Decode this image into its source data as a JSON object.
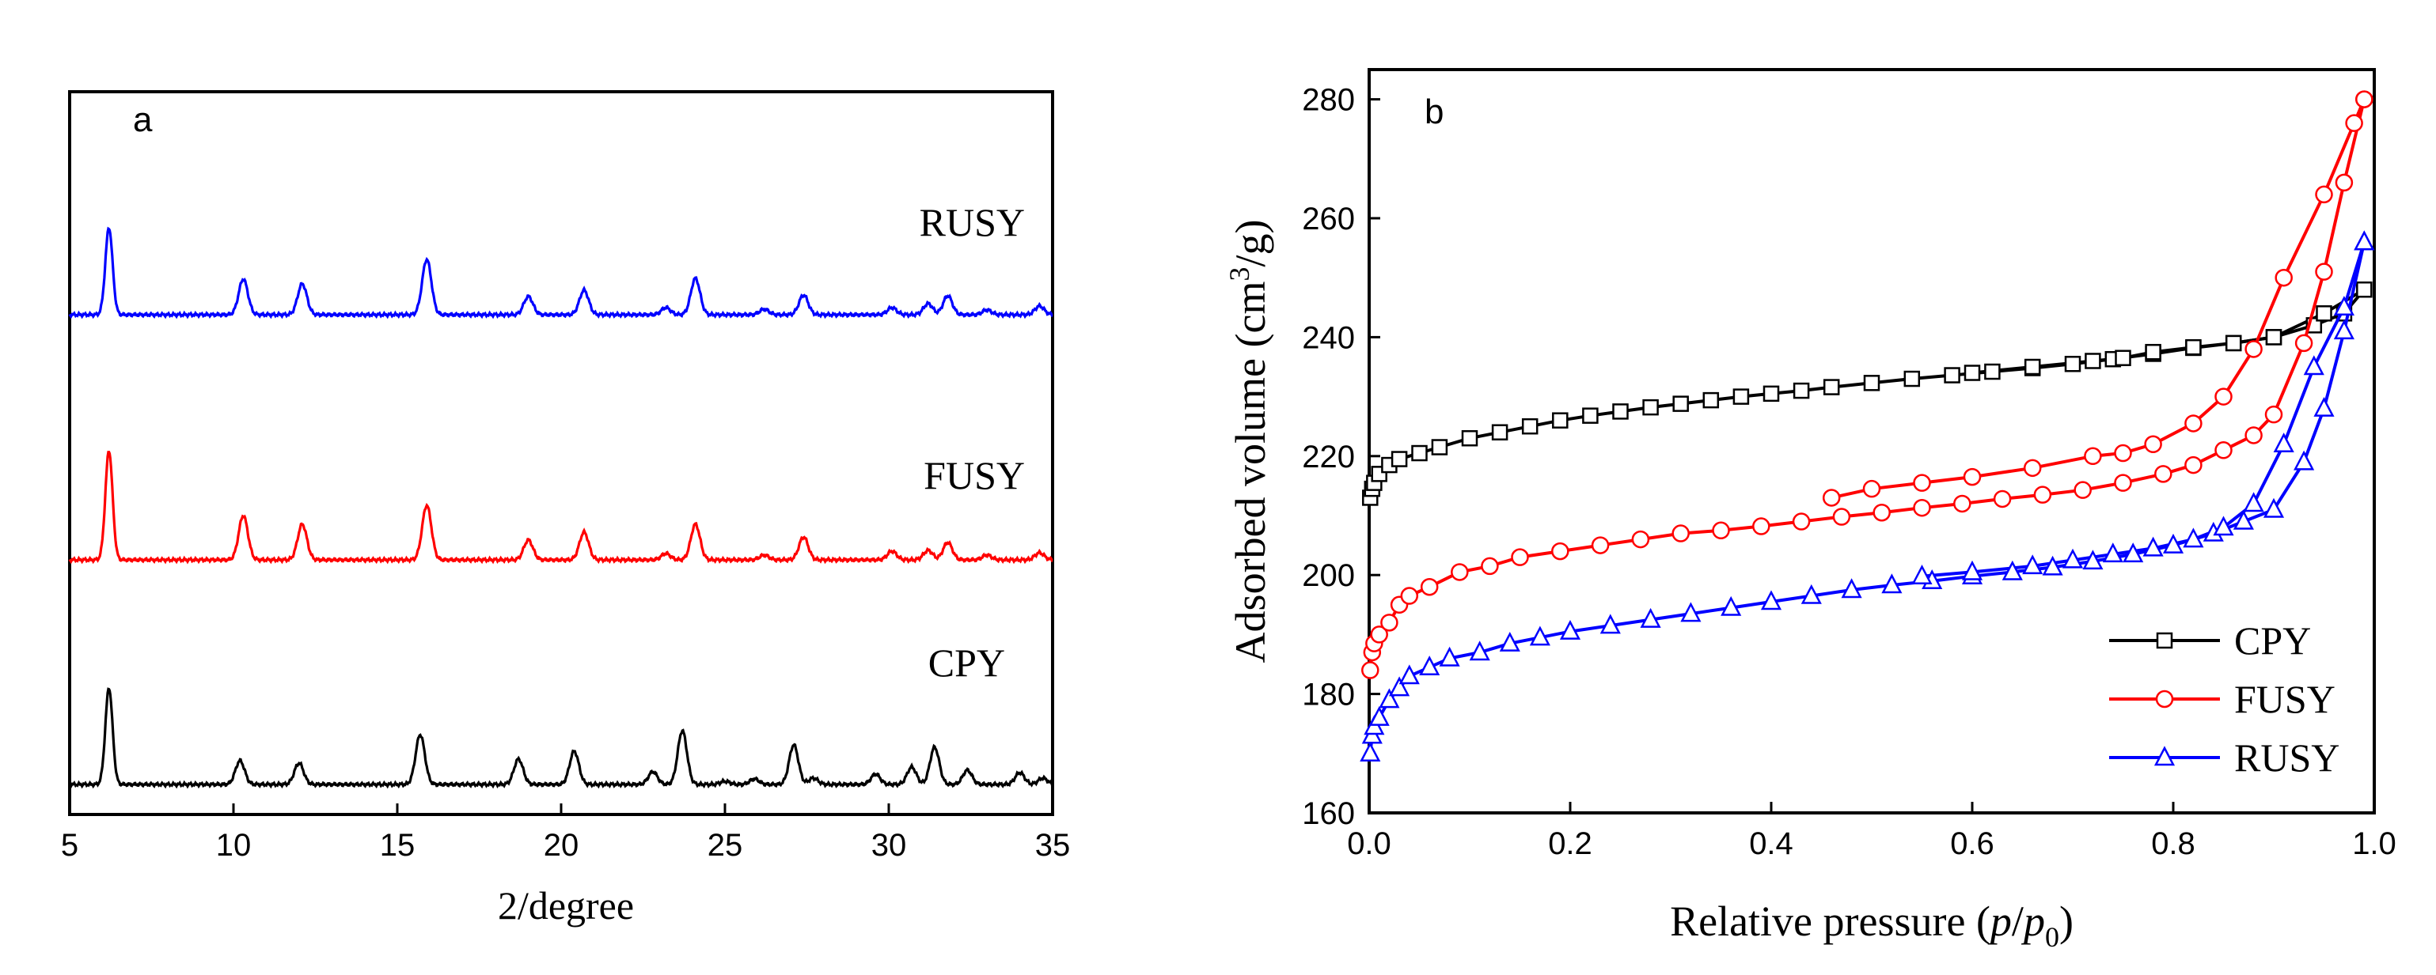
{
  "chart_data": [
    {
      "type": "line",
      "panel_label": "a",
      "xlabel": "2/degree",
      "ylabel": "",
      "xlim": [
        5,
        35
      ],
      "xticks": [
        "5",
        "10",
        "15",
        "20",
        "25",
        "30",
        "35"
      ],
      "y_ticks_shown": false,
      "series": [
        {
          "name": "RUSY",
          "color": "#0000ff",
          "peaks": [
            [
              6.2,
              110
            ],
            [
              10.3,
              45
            ],
            [
              12.1,
              39
            ],
            [
              15.9,
              70
            ],
            [
              19.0,
              23
            ],
            [
              20.7,
              31
            ],
            [
              23.2,
              9
            ],
            [
              24.1,
              46
            ],
            [
              26.2,
              7
            ],
            [
              27.4,
              25
            ],
            [
              30.1,
              9
            ],
            [
              31.2,
              14
            ],
            [
              31.8,
              24
            ],
            [
              33.0,
              6
            ],
            [
              34.6,
              11
            ]
          ]
        },
        {
          "name": "FUSY",
          "color": "#ff0000",
          "peaks": [
            [
              6.2,
              138
            ],
            [
              10.3,
              56
            ],
            [
              12.1,
              45
            ],
            [
              15.9,
              69
            ],
            [
              19.0,
              25
            ],
            [
              20.7,
              35
            ],
            [
              23.2,
              8
            ],
            [
              24.1,
              45
            ],
            [
              26.2,
              6
            ],
            [
              27.4,
              29
            ],
            [
              30.1,
              11
            ],
            [
              31.2,
              12
            ],
            [
              31.8,
              22
            ],
            [
              33.0,
              6
            ],
            [
              34.6,
              9
            ]
          ]
        },
        {
          "name": "CPY",
          "color": "#000000",
          "peaks": [
            [
              6.2,
              122
            ],
            [
              10.2,
              30
            ],
            [
              12.0,
              27
            ],
            [
              15.7,
              63
            ],
            [
              18.7,
              32
            ],
            [
              20.4,
              42
            ],
            [
              22.8,
              16
            ],
            [
              23.7,
              68
            ],
            [
              25.0,
              4
            ],
            [
              25.9,
              7
            ],
            [
              27.1,
              50
            ],
            [
              27.7,
              8
            ],
            [
              29.6,
              13
            ],
            [
              30.7,
              22
            ],
            [
              31.4,
              47
            ],
            [
              32.4,
              18
            ],
            [
              34.0,
              15
            ],
            [
              34.7,
              8
            ]
          ]
        }
      ]
    },
    {
      "type": "line",
      "panel_label": "b",
      "xlabel": "Relative pressure (p/p0)",
      "ylabel": "Adsorbed volume (cm3/g)",
      "xlim": [
        0.0,
        1.0
      ],
      "ylim": [
        160,
        285
      ],
      "xticks": [
        "0.0",
        "0.2",
        "0.4",
        "0.6",
        "0.8",
        "1.0"
      ],
      "yticks": [
        "160",
        "180",
        "200",
        "220",
        "240",
        "260",
        "280"
      ],
      "legend": "bottom-right",
      "series": [
        {
          "name": "CPY",
          "color": "#000000",
          "marker": "square",
          "adsorption": [
            [
              0.001,
              213
            ],
            [
              0.003,
              214.5
            ],
            [
              0.005,
              215.5
            ],
            [
              0.01,
              217
            ],
            [
              0.02,
              218.5
            ],
            [
              0.03,
              219.5
            ],
            [
              0.05,
              220.5
            ],
            [
              0.07,
              221.5
            ],
            [
              0.1,
              223
            ],
            [
              0.13,
              224
            ],
            [
              0.16,
              225
            ],
            [
              0.19,
              226
            ],
            [
              0.22,
              226.8
            ],
            [
              0.25,
              227.5
            ],
            [
              0.28,
              228.2
            ],
            [
              0.31,
              228.8
            ],
            [
              0.34,
              229.4
            ],
            [
              0.37,
              230
            ],
            [
              0.4,
              230.5
            ],
            [
              0.43,
              231
            ],
            [
              0.46,
              231.6
            ],
            [
              0.5,
              232.3
            ],
            [
              0.54,
              233
            ],
            [
              0.58,
              233.6
            ],
            [
              0.62,
              234.2
            ],
            [
              0.66,
              234.8
            ],
            [
              0.7,
              235.5
            ],
            [
              0.74,
              236.3
            ],
            [
              0.78,
              237.2
            ],
            [
              0.82,
              238.2
            ],
            [
              0.86,
              239
            ],
            [
              0.9,
              240
            ],
            [
              0.94,
              242
            ],
            [
              0.97,
              244
            ],
            [
              0.99,
              248
            ]
          ],
          "desorption": [
            [
              0.99,
              248
            ],
            [
              0.95,
              244
            ],
            [
              0.9,
              240
            ],
            [
              0.86,
              239
            ],
            [
              0.82,
              238.3
            ],
            [
              0.78,
              237.5
            ],
            [
              0.75,
              236.5
            ],
            [
              0.72,
              236
            ],
            [
              0.66,
              235
            ],
            [
              0.6,
              234
            ]
          ]
        },
        {
          "name": "FUSY",
          "color": "#ff0000",
          "marker": "circle",
          "adsorption": [
            [
              0.001,
              184
            ],
            [
              0.003,
              187
            ],
            [
              0.005,
              188.5
            ],
            [
              0.01,
              190
            ],
            [
              0.02,
              192
            ],
            [
              0.03,
              195
            ],
            [
              0.04,
              196.5
            ],
            [
              0.06,
              198
            ],
            [
              0.09,
              200.5
            ],
            [
              0.12,
              201.5
            ],
            [
              0.15,
              203
            ],
            [
              0.19,
              204
            ],
            [
              0.23,
              205
            ],
            [
              0.27,
              206
            ],
            [
              0.31,
              207
            ],
            [
              0.35,
              207.5
            ],
            [
              0.39,
              208.2
            ],
            [
              0.43,
              209
            ],
            [
              0.47,
              209.8
            ],
            [
              0.51,
              210.5
            ],
            [
              0.55,
              211.3
            ],
            [
              0.59,
              212
            ],
            [
              0.63,
              212.8
            ],
            [
              0.67,
              213.5
            ],
            [
              0.71,
              214.3
            ],
            [
              0.75,
              215.5
            ],
            [
              0.79,
              217
            ],
            [
              0.82,
              218.5
            ],
            [
              0.85,
              221
            ],
            [
              0.88,
              223.5
            ],
            [
              0.9,
              227
            ],
            [
              0.93,
              239
            ],
            [
              0.95,
              251
            ],
            [
              0.97,
              266
            ],
            [
              0.99,
              280
            ]
          ],
          "desorption": [
            [
              0.99,
              280
            ],
            [
              0.98,
              276
            ],
            [
              0.95,
              264
            ],
            [
              0.91,
              250
            ],
            [
              0.88,
              238
            ],
            [
              0.85,
              230
            ],
            [
              0.82,
              225.5
            ],
            [
              0.78,
              222
            ],
            [
              0.75,
              220.5
            ],
            [
              0.72,
              220
            ],
            [
              0.66,
              218
            ],
            [
              0.6,
              216.5
            ],
            [
              0.55,
              215.5
            ],
            [
              0.5,
              214.5
            ],
            [
              0.46,
              213
            ]
          ]
        },
        {
          "name": "RUSY",
          "color": "#0000ff",
          "marker": "triangle",
          "adsorption": [
            [
              0.001,
              170
            ],
            [
              0.003,
              173
            ],
            [
              0.005,
              174.5
            ],
            [
              0.01,
              176
            ],
            [
              0.02,
              179
            ],
            [
              0.03,
              181
            ],
            [
              0.04,
              183
            ],
            [
              0.06,
              184.5
            ],
            [
              0.08,
              186
            ],
            [
              0.11,
              187
            ],
            [
              0.14,
              188.5
            ],
            [
              0.17,
              189.5
            ],
            [
              0.2,
              190.5
            ],
            [
              0.24,
              191.5
            ],
            [
              0.28,
              192.5
            ],
            [
              0.32,
              193.5
            ],
            [
              0.36,
              194.5
            ],
            [
              0.4,
              195.5
            ],
            [
              0.44,
              196.5
            ],
            [
              0.48,
              197.5
            ],
            [
              0.52,
              198.3
            ],
            [
              0.56,
              199
            ],
            [
              0.6,
              199.8
            ],
            [
              0.64,
              200.5
            ],
            [
              0.68,
              201.3
            ],
            [
              0.72,
              202.3
            ],
            [
              0.76,
              203.5
            ],
            [
              0.8,
              205
            ],
            [
              0.84,
              207
            ],
            [
              0.87,
              209
            ],
            [
              0.9,
              211
            ],
            [
              0.93,
              219
            ],
            [
              0.95,
              228
            ],
            [
              0.97,
              241
            ],
            [
              0.99,
              256
            ]
          ],
          "desorption": [
            [
              0.99,
              256
            ],
            [
              0.97,
              245
            ],
            [
              0.94,
              235
            ],
            [
              0.91,
              222
            ],
            [
              0.88,
              212
            ],
            [
              0.85,
              208
            ],
            [
              0.82,
              206
            ],
            [
              0.78,
              204.5
            ],
            [
              0.74,
              203.5
            ],
            [
              0.7,
              202.5
            ],
            [
              0.66,
              201.5
            ],
            [
              0.6,
              200.5
            ],
            [
              0.55,
              199.8
            ]
          ]
        }
      ]
    }
  ]
}
